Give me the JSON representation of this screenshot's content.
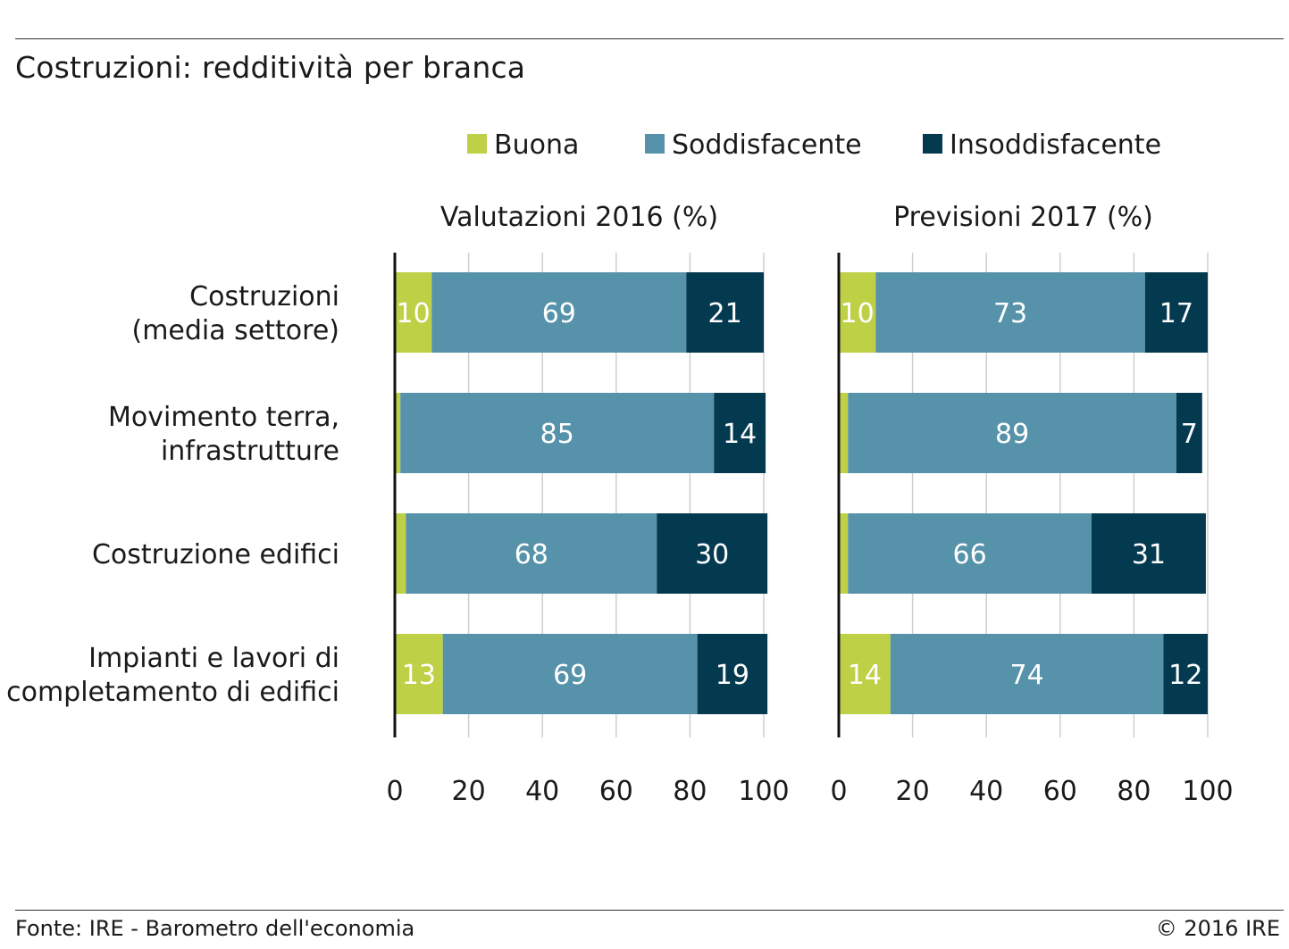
{
  "title": "Costruzioni: redditività per branca",
  "source": "Fonte: IRE - Barometro dell'economia",
  "copyright": "© 2016 IRE",
  "colors": {
    "Buona": "#bdd046",
    "Soddisfacente": "#5692aa",
    "Insoddisfacente": "#043a50"
  },
  "chart_data": {
    "type": "bar",
    "orientation": "horizontal",
    "stacked": true,
    "legend": [
      "Buona",
      "Soddisfacente",
      "Insoddisfacente"
    ],
    "legend_position": "top",
    "categories": [
      "Costruzioni\n(media settore)",
      "Movimento terra,\ninfrastrutture",
      "Costruzione edifici",
      "Impianti e lavori di\ncompletamento di edifici"
    ],
    "xticks": [
      "0",
      "20",
      "40",
      "60",
      "80",
      "100"
    ],
    "xlim": [
      0,
      100
    ],
    "grid": true,
    "panels": [
      {
        "title": "Valutazioni 2016 (%)",
        "series": [
          {
            "name": "Buona",
            "values": [
              10,
              1.5,
              3,
              13
            ],
            "labels": [
              "10",
              "",
              "",
              "13"
            ]
          },
          {
            "name": "Soddisfacente",
            "values": [
              69,
              85,
              68,
              69
            ],
            "labels": [
              "69",
              "85",
              "68",
              "69"
            ]
          },
          {
            "name": "Insoddisfacente",
            "values": [
              21,
              14,
              30,
              19
            ],
            "labels": [
              "21",
              "14",
              "30",
              "19"
            ]
          }
        ]
      },
      {
        "title": "Previsioni 2017 (%)",
        "series": [
          {
            "name": "Buona",
            "values": [
              10,
              2.5,
              2.5,
              14
            ],
            "labels": [
              "10",
              "",
              "",
              "14"
            ]
          },
          {
            "name": "Soddisfacente",
            "values": [
              73,
              89,
              66,
              74
            ],
            "labels": [
              "73",
              "89",
              "66",
              "74"
            ]
          },
          {
            "name": "Insoddisfacente",
            "values": [
              17,
              7,
              31,
              12
            ],
            "labels": [
              "17",
              "7",
              "31",
              "12"
            ]
          }
        ]
      }
    ]
  }
}
